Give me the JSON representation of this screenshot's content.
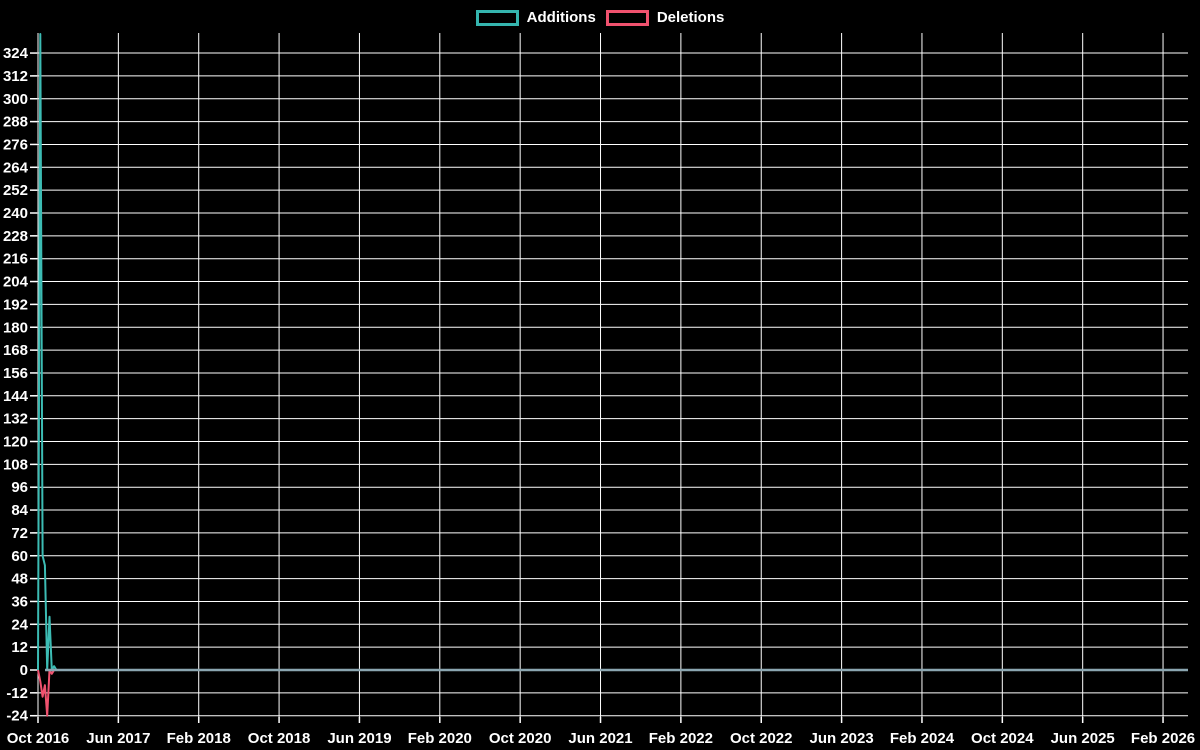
{
  "chart_data": {
    "type": "line",
    "title": "",
    "background": "#000000",
    "grid_color": "#ffffff",
    "text_color": "#ffffff",
    "zero_line_color": "#8BA6B1",
    "legend": [
      {
        "label": "Additions",
        "color": "#35B5AF"
      },
      {
        "label": "Deletions",
        "color": "#F0526F"
      }
    ],
    "x_tick_labels": [
      "Oct 2016",
      "Jun 2017",
      "Feb 2018",
      "Oct 2018",
      "Jun 2019",
      "Feb 2020",
      "Oct 2020",
      "Jun 2021",
      "Feb 2022",
      "Oct 2022",
      "Jun 2023",
      "Feb 2024",
      "Oct 2024",
      "Jun 2025",
      "Feb 2026"
    ],
    "y_ticks": [
      324,
      312,
      300,
      288,
      276,
      264,
      252,
      240,
      228,
      216,
      204,
      192,
      180,
      168,
      156,
      144,
      132,
      120,
      108,
      96,
      84,
      72,
      60,
      48,
      36,
      24,
      12,
      0,
      -12,
      -24
    ],
    "ylim": [
      -25.5,
      334.5
    ],
    "x_unit": "weeks since Oct 2016",
    "series": [
      {
        "name": "Additions",
        "color": "#3CBCB4",
        "weekly_head": [
          0,
          334,
          60,
          55,
          0,
          28,
          0,
          2,
          0
        ],
        "weeks_total": 499,
        "rest_value": 0
      },
      {
        "name": "Deletions",
        "color": "#F0526F",
        "weekly_head": [
          0,
          -6,
          -14,
          -8,
          -24,
          0,
          -2,
          0,
          0
        ],
        "weeks_total": 499,
        "rest_value": 0
      }
    ]
  }
}
